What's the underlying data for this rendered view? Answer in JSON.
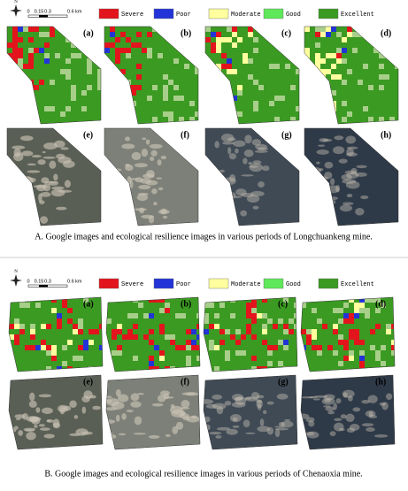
{
  "panels": [
    {
      "north": "N",
      "scale": [
        "0",
        "0.15",
        "0.3",
        "0.6 km"
      ],
      "legend": [
        {
          "label": "Severe",
          "color": "#e3141c"
        },
        {
          "label": "Poor",
          "color": "#2234d8"
        },
        {
          "label": "Moderate",
          "color": "#ffff9e"
        },
        {
          "label": "Good",
          "color": "#5ee85a"
        },
        {
          "label": "Excellent",
          "color": "#3b9a22"
        }
      ],
      "labels": [
        "(a)",
        "(b)",
        "(c)",
        "(d)",
        "(e)",
        "(f)",
        "(g)",
        "(h)"
      ],
      "caption": "A. Google images and ecological resilience images in various periods of Longchuankeng mine."
    },
    {
      "north": "N",
      "scale": [
        "0",
        "0.15",
        "0.3",
        "0.6 km"
      ],
      "legend": [
        {
          "label": "Severe",
          "color": "#e3141c"
        },
        {
          "label": "Poor",
          "color": "#2234d8"
        },
        {
          "label": "Moderate",
          "color": "#ffff9e"
        },
        {
          "label": "Good",
          "color": "#5ee85a"
        },
        {
          "label": "Excellent",
          "color": "#3b9a22"
        }
      ],
      "labels": [
        "(a)",
        "(b)",
        "(c)",
        "(d)",
        "(e)",
        "(f)",
        "(g)",
        "(h)"
      ],
      "caption": "B. Google images and ecological resilience images in various periods of Chenaoxia mine."
    }
  ]
}
